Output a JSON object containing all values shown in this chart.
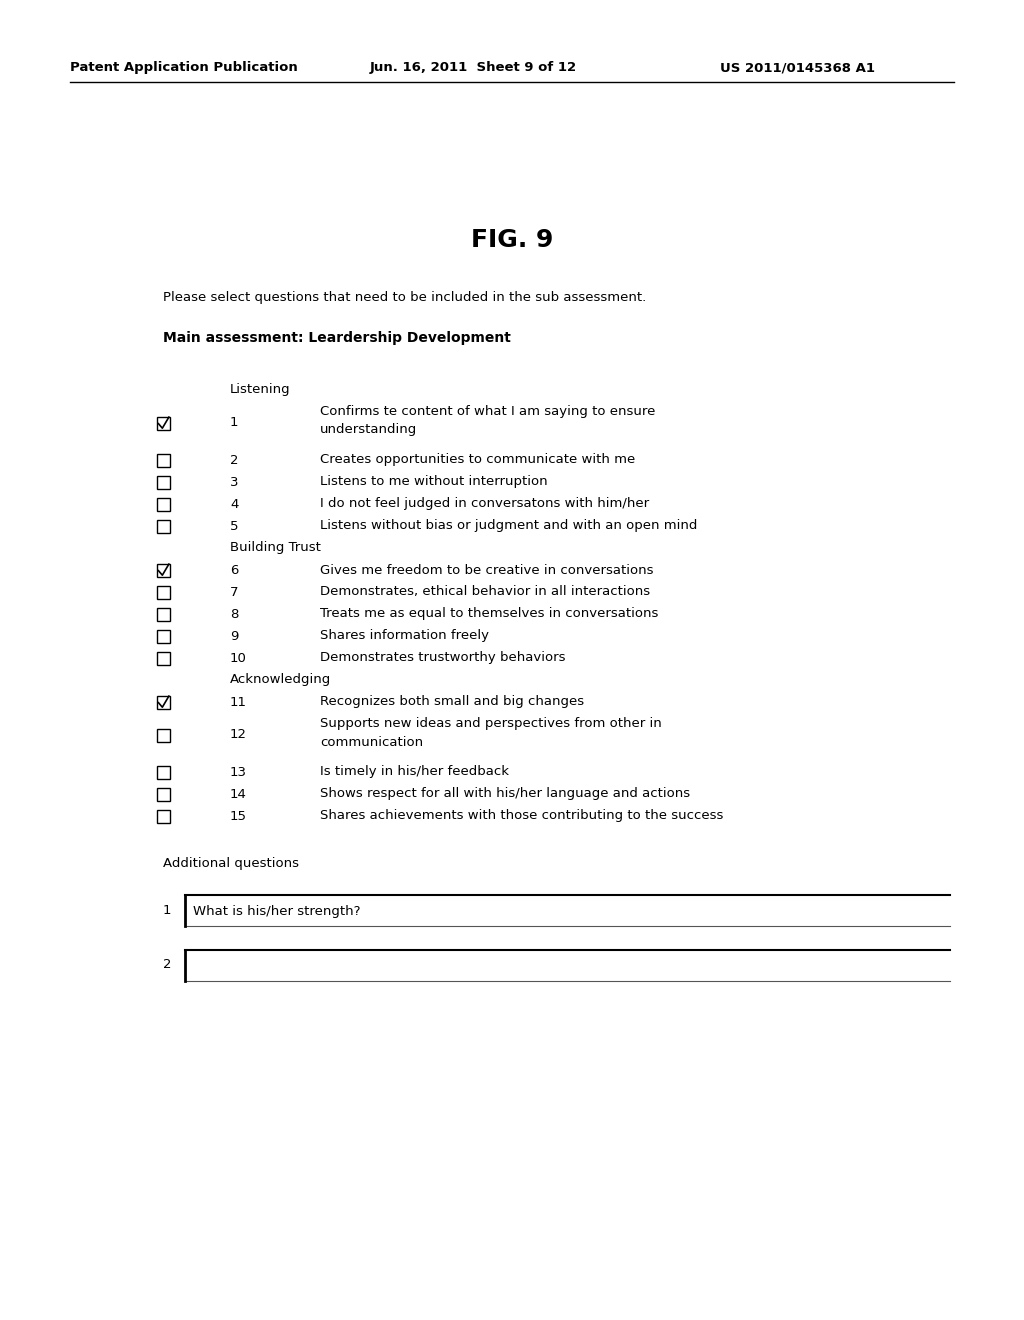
{
  "header_left": "Patent Application Publication",
  "header_mid": "Jun. 16, 2011  Sheet 9 of 12",
  "header_right": "US 2011/0145368 A1",
  "fig_title": "FIG. 9",
  "instruction": "Please select questions that need to be included in the sub assessment.",
  "main_label": "Main assessment: Leardership Development",
  "sections": [
    {
      "name": "Listening",
      "items": [
        {
          "num": 1,
          "checked": true,
          "text": "Confirms te content of what I am saying to ensure\nunderstanding"
        },
        {
          "num": 2,
          "checked": false,
          "text": "Creates opportunities to communicate with me"
        },
        {
          "num": 3,
          "checked": false,
          "text": "Listens to me without interruption"
        },
        {
          "num": 4,
          "checked": false,
          "text": "I do not feel judged in conversatons with him/her"
        },
        {
          "num": 5,
          "checked": false,
          "text": "Listens without bias or judgment and with an open mind"
        }
      ]
    },
    {
      "name": "Building Trust",
      "items": [
        {
          "num": 6,
          "checked": true,
          "text": "Gives me freedom to be creative in conversations"
        },
        {
          "num": 7,
          "checked": false,
          "text": "Demonstrates, ethical behavior in all interactions"
        },
        {
          "num": 8,
          "checked": false,
          "text": "Treats me as equal to themselves in conversations"
        },
        {
          "num": 9,
          "checked": false,
          "text": "Shares information freely"
        },
        {
          "num": 10,
          "checked": false,
          "text": "Demonstrates trustworthy behaviors"
        }
      ]
    },
    {
      "name": "Acknowledging",
      "items": [
        {
          "num": 11,
          "checked": true,
          "text": "Recognizes both small and big changes"
        },
        {
          "num": 12,
          "checked": false,
          "text": "Supports new ideas and perspectives from other in\ncommunication"
        },
        {
          "num": 13,
          "checked": false,
          "text": "Is timely in his/her feedback"
        },
        {
          "num": 14,
          "checked": false,
          "text": "Shows respect for all with his/her language and actions"
        },
        {
          "num": 15,
          "checked": false,
          "text": "Shares achievements with those contributing to the success"
        }
      ]
    }
  ],
  "additional_label": "Additional questions",
  "additional_items": [
    {
      "num": 1,
      "placeholder": "What is his/her strength?"
    },
    {
      "num": 2,
      "placeholder": ""
    }
  ],
  "bg_color": "#ffffff",
  "text_color": "#000000",
  "font_size": 9.5,
  "header_font_size": 9.5,
  "fig_font_size": 18,
  "main_label_font_size": 10
}
